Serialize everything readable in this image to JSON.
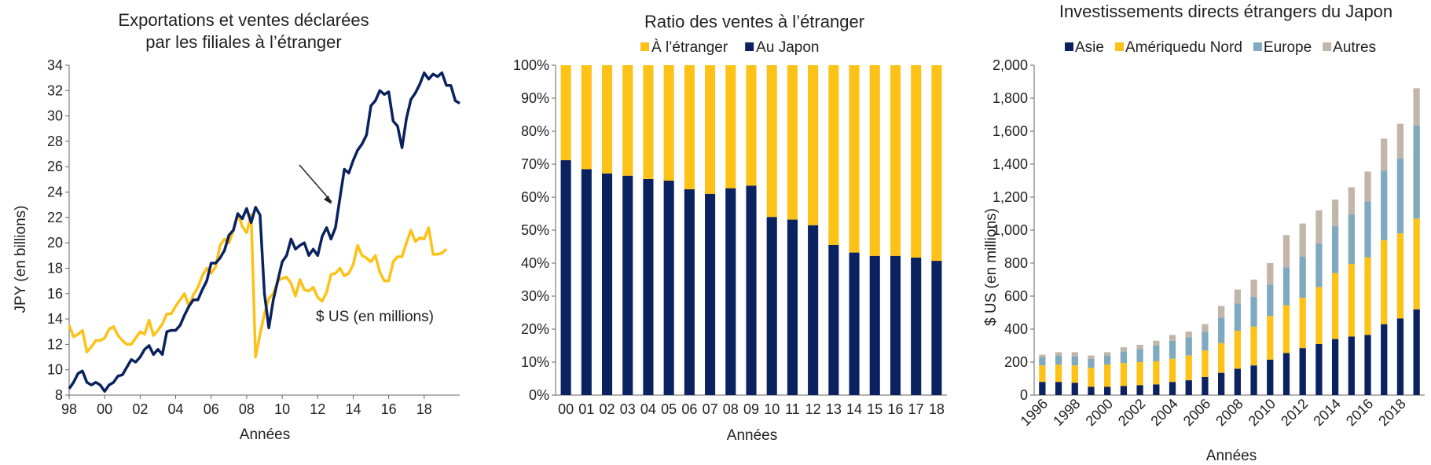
{
  "colors": {
    "navy": "#0B2260",
    "yellow": "#FDC217",
    "lightblue": "#7FA9BE",
    "gray": "#C2B6AA",
    "axis": "#666666"
  },
  "chart_data": [
    {
      "type": "line",
      "title_line1": "Exportations et ventes déclarées",
      "title_line2": "par les filiales à l’étranger",
      "ylabel": "JPY (en billions)",
      "xlabel": "Années",
      "annotation": "$ US (en millions)",
      "ylim": [
        8,
        34
      ],
      "yticks": [
        8,
        10,
        12,
        14,
        16,
        18,
        20,
        22,
        24,
        26,
        28,
        30,
        32,
        34
      ],
      "xlim": [
        1998,
        2020
      ],
      "xticks": [
        {
          "value": 1998,
          "label": "98"
        },
        {
          "value": 2000,
          "label": "00"
        },
        {
          "value": 2002,
          "label": "02"
        },
        {
          "value": 2004,
          "label": "04"
        },
        {
          "value": 2006,
          "label": "06"
        },
        {
          "value": 2008,
          "label": "08"
        },
        {
          "value": 2010,
          "label": "10"
        },
        {
          "value": 2012,
          "label": "12"
        },
        {
          "value": 2014,
          "label": "14"
        },
        {
          "value": 2016,
          "label": "16"
        },
        {
          "value": 2018,
          "label": "18"
        }
      ],
      "series": [
        {
          "name": "Exportations",
          "color": "#0B2260",
          "points": [
            [
              1998.0,
              8.5
            ],
            [
              1998.25,
              9.0
            ],
            [
              1998.5,
              9.7
            ],
            [
              1998.75,
              9.9
            ],
            [
              1999.0,
              9.0
            ],
            [
              1999.25,
              8.8
            ],
            [
              1999.5,
              9.0
            ],
            [
              1999.75,
              8.8
            ],
            [
              2000.0,
              8.3
            ],
            [
              2000.25,
              8.8
            ],
            [
              2000.5,
              9.0
            ],
            [
              2000.75,
              9.5
            ],
            [
              2001.0,
              9.6
            ],
            [
              2001.25,
              10.2
            ],
            [
              2001.5,
              10.8
            ],
            [
              2001.75,
              10.6
            ],
            [
              2002.0,
              11.0
            ],
            [
              2002.25,
              11.6
            ],
            [
              2002.5,
              11.9
            ],
            [
              2002.75,
              11.2
            ],
            [
              2003.0,
              11.6
            ],
            [
              2003.25,
              11.2
            ],
            [
              2003.5,
              13.0
            ],
            [
              2003.75,
              13.1
            ],
            [
              2004.0,
              13.1
            ],
            [
              2004.25,
              13.5
            ],
            [
              2004.5,
              14.3
            ],
            [
              2004.75,
              15.0
            ],
            [
              2005.0,
              15.5
            ],
            [
              2005.25,
              15.5
            ],
            [
              2005.5,
              16.3
            ],
            [
              2005.75,
              17.0
            ],
            [
              2006.0,
              18.4
            ],
            [
              2006.25,
              18.4
            ],
            [
              2006.5,
              18.8
            ],
            [
              2006.75,
              19.4
            ],
            [
              2007.0,
              20.6
            ],
            [
              2007.25,
              21.0
            ],
            [
              2007.5,
              22.3
            ],
            [
              2007.75,
              21.9
            ],
            [
              2008.0,
              22.7
            ],
            [
              2008.25,
              21.6
            ],
            [
              2008.5,
              22.8
            ],
            [
              2008.75,
              22.2
            ],
            [
              2009.0,
              16.0
            ],
            [
              2009.25,
              13.3
            ],
            [
              2009.5,
              15.5
            ],
            [
              2009.75,
              17.0
            ],
            [
              2010.0,
              18.5
            ],
            [
              2010.25,
              19.0
            ],
            [
              2010.5,
              20.3
            ],
            [
              2010.75,
              19.5
            ],
            [
              2011.0,
              19.8
            ],
            [
              2011.25,
              20.0
            ],
            [
              2011.5,
              19.0
            ],
            [
              2011.75,
              19.5
            ],
            [
              2012.0,
              19.0
            ],
            [
              2012.25,
              20.5
            ],
            [
              2012.5,
              21.2
            ],
            [
              2012.75,
              20.3
            ],
            [
              2013.0,
              21.2
            ],
            [
              2013.25,
              23.5
            ],
            [
              2013.5,
              25.8
            ],
            [
              2013.75,
              25.5
            ],
            [
              2014.0,
              26.5
            ],
            [
              2014.25,
              27.3
            ],
            [
              2014.5,
              27.8
            ],
            [
              2014.75,
              28.5
            ],
            [
              2015.0,
              30.8
            ],
            [
              2015.25,
              31.2
            ],
            [
              2015.5,
              32.0
            ],
            [
              2015.75,
              31.7
            ],
            [
              2016.0,
              31.9
            ],
            [
              2016.25,
              29.6
            ],
            [
              2016.5,
              29.2
            ],
            [
              2016.75,
              27.5
            ],
            [
              2017.0,
              29.8
            ],
            [
              2017.25,
              31.3
            ],
            [
              2017.5,
              31.8
            ],
            [
              2017.75,
              32.5
            ],
            [
              2018.0,
              33.4
            ],
            [
              2018.25,
              32.9
            ],
            [
              2018.5,
              33.3
            ],
            [
              2018.75,
              33.1
            ],
            [
              2019.0,
              33.4
            ],
            [
              2019.25,
              32.4
            ],
            [
              2019.5,
              32.4
            ],
            [
              2019.75,
              31.2
            ],
            [
              2020.0,
              31.0
            ]
          ]
        },
        {
          "name": "Ventes des filiales",
          "color": "#FDC217",
          "points": [
            [
              1998.0,
              13.5
            ],
            [
              1998.25,
              12.6
            ],
            [
              1998.5,
              12.8
            ],
            [
              1998.75,
              13.1
            ],
            [
              1999.0,
              11.4
            ],
            [
              1999.25,
              11.8
            ],
            [
              1999.5,
              12.3
            ],
            [
              1999.75,
              12.3
            ],
            [
              2000.0,
              12.5
            ],
            [
              2000.25,
              13.2
            ],
            [
              2000.5,
              13.4
            ],
            [
              2000.75,
              12.7
            ],
            [
              2001.0,
              12.3
            ],
            [
              2001.25,
              12.0
            ],
            [
              2001.5,
              12.0
            ],
            [
              2001.75,
              12.5
            ],
            [
              2002.0,
              13.0
            ],
            [
              2002.25,
              12.8
            ],
            [
              2002.5,
              13.9
            ],
            [
              2002.75,
              12.7
            ],
            [
              2003.0,
              13.1
            ],
            [
              2003.25,
              13.6
            ],
            [
              2003.5,
              14.4
            ],
            [
              2003.75,
              14.4
            ],
            [
              2004.0,
              15.0
            ],
            [
              2004.25,
              15.5
            ],
            [
              2004.5,
              16.0
            ],
            [
              2004.75,
              15.0
            ],
            [
              2005.0,
              15.9
            ],
            [
              2005.25,
              16.5
            ],
            [
              2005.5,
              17.4
            ],
            [
              2005.75,
              18.0
            ],
            [
              2006.0,
              17.6
            ],
            [
              2006.25,
              18.1
            ],
            [
              2006.5,
              19.8
            ],
            [
              2006.75,
              20.3
            ],
            [
              2007.0,
              20.0
            ],
            [
              2007.25,
              21.0
            ],
            [
              2007.5,
              22.3
            ],
            [
              2007.75,
              21.3
            ],
            [
              2008.0,
              20.8
            ],
            [
              2008.25,
              22.2
            ],
            [
              2008.5,
              11.0
            ],
            [
              2008.75,
              12.8
            ],
            [
              2009.0,
              14.4
            ],
            [
              2009.25,
              15.6
            ],
            [
              2009.5,
              16.0
            ],
            [
              2009.75,
              17.0
            ],
            [
              2010.0,
              17.2
            ],
            [
              2010.25,
              17.3
            ],
            [
              2010.5,
              16.8
            ],
            [
              2010.75,
              15.8
            ],
            [
              2011.0,
              17.1
            ],
            [
              2011.25,
              16.3
            ],
            [
              2011.5,
              16.2
            ],
            [
              2011.75,
              16.5
            ],
            [
              2012.0,
              15.7
            ],
            [
              2012.25,
              15.4
            ],
            [
              2012.5,
              16.1
            ],
            [
              2012.75,
              17.5
            ],
            [
              2013.0,
              17.6
            ],
            [
              2013.25,
              18.0
            ],
            [
              2013.5,
              17.4
            ],
            [
              2013.75,
              17.6
            ],
            [
              2014.0,
              18.3
            ],
            [
              2014.25,
              19.8
            ],
            [
              2014.5,
              19.0
            ],
            [
              2014.75,
              18.8
            ],
            [
              2015.0,
              18.5
            ],
            [
              2015.25,
              19.0
            ],
            [
              2015.5,
              17.7
            ],
            [
              2015.75,
              17.0
            ],
            [
              2016.0,
              17.0
            ],
            [
              2016.25,
              18.5
            ],
            [
              2016.5,
              18.9
            ],
            [
              2016.75,
              18.9
            ],
            [
              2017.0,
              20.0
            ],
            [
              2017.25,
              21.0
            ],
            [
              2017.5,
              20.1
            ],
            [
              2017.75,
              20.4
            ],
            [
              2018.0,
              20.3
            ],
            [
              2018.25,
              21.2
            ],
            [
              2018.5,
              19.1
            ],
            [
              2018.75,
              19.1
            ],
            [
              2019.0,
              19.2
            ],
            [
              2019.25,
              19.5
            ]
          ]
        }
      ]
    },
    {
      "type": "bar",
      "stacked": true,
      "title": "Ratio des ventes à l’étranger",
      "xlabel": "Années",
      "ylim": [
        0,
        100
      ],
      "yticks": [
        "0%",
        "10%",
        "20%",
        "30%",
        "40%",
        "50%",
        "60%",
        "70%",
        "80%",
        "90%",
        "100%"
      ],
      "categories": [
        "00",
        "01",
        "02",
        "03",
        "04",
        "05",
        "06",
        "07",
        "08",
        "09",
        "10",
        "11",
        "12",
        "13",
        "14",
        "15",
        "16",
        "17",
        "18"
      ],
      "legend": [
        {
          "name": "À l’étranger",
          "color": "#FDC217"
        },
        {
          "name": "Au Japon",
          "color": "#0B2260"
        }
      ],
      "series": [
        {
          "name": "Au Japon",
          "color": "#0B2260",
          "values": [
            71.2,
            68.5,
            67.2,
            66.5,
            65.5,
            65.0,
            62.4,
            61.0,
            62.7,
            63.5,
            54.0,
            53.2,
            51.5,
            45.5,
            43.2,
            42.2,
            42.2,
            41.7,
            40.7
          ]
        },
        {
          "name": "À l’étranger",
          "color": "#FDC217",
          "values": [
            28.8,
            31.5,
            32.8,
            33.5,
            34.5,
            35.0,
            37.6,
            39.0,
            37.3,
            36.5,
            46.0,
            46.8,
            48.5,
            54.5,
            56.8,
            57.8,
            57.8,
            58.3,
            59.3
          ]
        }
      ]
    },
    {
      "type": "bar",
      "stacked": true,
      "title": "Investissements directs étrangers du Japon",
      "ylabel": "$ US (en millions)",
      "xlabel": "Années",
      "ylim": [
        0,
        2000
      ],
      "yticks": [
        "0",
        "200",
        "400",
        "600",
        "800",
        "1,000",
        "1,200",
        "1,400",
        "1,600",
        "1,800",
        "2,000"
      ],
      "categories": [
        "1996",
        "1997",
        "1998",
        "1999",
        "2000",
        "2001",
        "2002",
        "2003",
        "2004",
        "2005",
        "2006",
        "2007",
        "2008",
        "2009",
        "2010",
        "2011",
        "2012",
        "2013",
        "2014",
        "2015",
        "2016",
        "2017",
        "2018",
        "2019"
      ],
      "xtick_labels": [
        "1996",
        "1998",
        "2000",
        "2002",
        "2004",
        "2006",
        "2008",
        "2010",
        "2012",
        "2014",
        "2016",
        "2018"
      ],
      "legend": [
        {
          "name": "Asie",
          "color": "#0B2260"
        },
        {
          "name": "Amériquedu Nord",
          "color": "#FDC217"
        },
        {
          "name": "Europe",
          "color": "#7FA9BE"
        },
        {
          "name": "Autres",
          "color": "#C2B6AA"
        }
      ],
      "series": [
        {
          "name": "Asie",
          "color": "#0B2260",
          "values": [
            80,
            80,
            75,
            50,
            50,
            55,
            60,
            65,
            80,
            90,
            110,
            135,
            160,
            180,
            215,
            255,
            285,
            310,
            340,
            355,
            365,
            430,
            465,
            520
          ]
        },
        {
          "name": "Amériquedu Nord",
          "color": "#FDC217",
          "values": [
            100,
            105,
            105,
            115,
            135,
            140,
            140,
            140,
            140,
            150,
            160,
            180,
            230,
            235,
            265,
            290,
            305,
            345,
            400,
            440,
            470,
            510,
            515,
            550
          ]
        },
        {
          "name": "Europe",
          "color": "#7FA9BE",
          "values": [
            50,
            55,
            55,
            55,
            55,
            70,
            80,
            95,
            110,
            110,
            115,
            155,
            165,
            180,
            190,
            230,
            250,
            265,
            285,
            300,
            340,
            420,
            455,
            565
          ]
        },
        {
          "name": "Autres",
          "color": "#C2B6AA",
          "values": [
            15,
            20,
            25,
            20,
            20,
            25,
            25,
            30,
            35,
            35,
            45,
            70,
            85,
            105,
            130,
            195,
            200,
            200,
            160,
            165,
            180,
            195,
            210,
            225
          ]
        }
      ]
    }
  ]
}
